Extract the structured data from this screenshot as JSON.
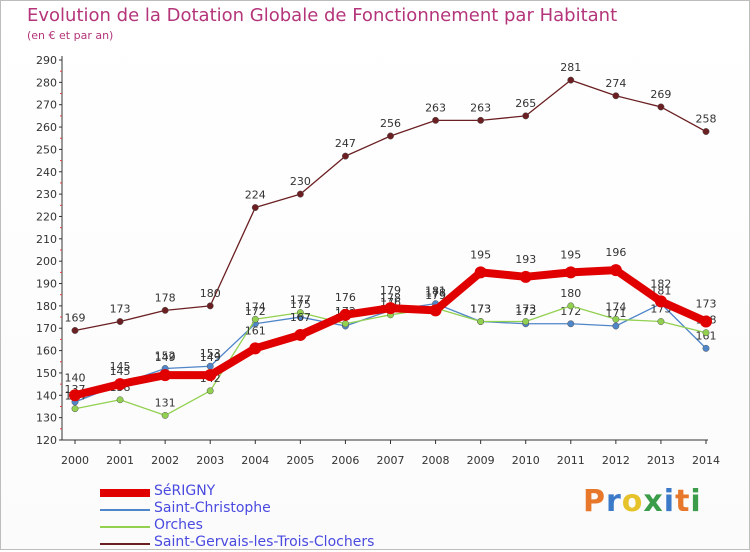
{
  "header": {
    "title": "Evolution de la Dotation Globale de Fonctionnement par Habitant",
    "subtitle": "(en € et par an)"
  },
  "logo": {
    "text": "Proxiti",
    "colors": [
      "#e6772b",
      "#3b79c9",
      "#e6c22b",
      "#3b9c4a",
      "#3b79c9",
      "#e6772b",
      "#3b9c4a"
    ]
  },
  "chart_data": {
    "type": "line",
    "title": "Evolution de la Dotation Globale de Fonctionnement par Habitant",
    "subtitle": "(en € et par an)",
    "xlabel": "",
    "ylabel": "",
    "x": [
      "2000",
      "2001",
      "2002",
      "2003",
      "2004",
      "2005",
      "2006",
      "2007",
      "2008",
      "2009",
      "2010",
      "2011",
      "2012",
      "2013",
      "2014"
    ],
    "ylim": [
      120,
      290
    ],
    "yticks": [
      120,
      130,
      140,
      150,
      160,
      170,
      180,
      190,
      200,
      210,
      220,
      230,
      240,
      250,
      260,
      270,
      280,
      290
    ],
    "grid": false,
    "legend": "bottom-left",
    "series": [
      {
        "name": "SéRIGNY",
        "color": "#e00000",
        "highlight": true,
        "values": [
          140,
          145,
          149,
          149,
          161,
          167,
          176,
          179,
          178,
          195,
          193,
          195,
          196,
          182,
          173
        ]
      },
      {
        "name": "Saint-Christophe",
        "color": "#4f86c9",
        "values": [
          137,
          145,
          152,
          153,
          172,
          175,
          171,
          178,
          181,
          173,
          172,
          172,
          171,
          181,
          161
        ]
      },
      {
        "name": "Orches",
        "color": "#92d050",
        "values": [
          134,
          138,
          131,
          142,
          174,
          177,
          172,
          176,
          179,
          173,
          173,
          180,
          174,
          173,
          168
        ]
      },
      {
        "name": "Saint-Gervais-les-Trois-Clochers",
        "color": "#6b1f22",
        "values": [
          169,
          173,
          178,
          180,
          224,
          230,
          247,
          256,
          263,
          263,
          265,
          281,
          274,
          269,
          258
        ]
      }
    ]
  }
}
